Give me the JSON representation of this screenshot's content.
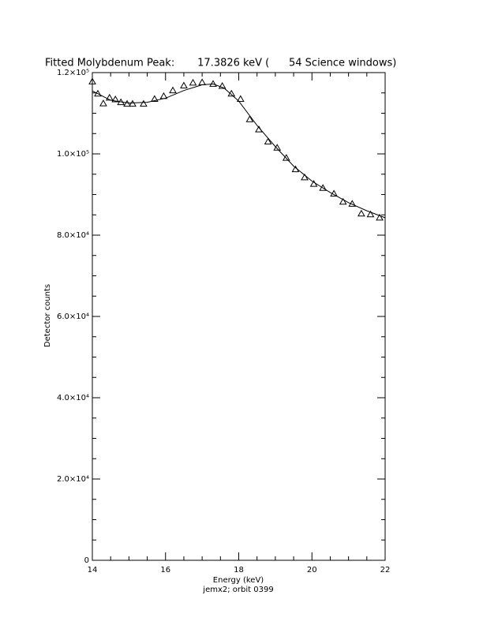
{
  "chart_data": {
    "type": "line",
    "title": "Fitted Molybdenum Peak:       17.3826 keV (      54 Science windows)",
    "xlabel": "Energy (keV)",
    "subtitle": "jemx2; orbit 0399",
    "ylabel": "Detector counts",
    "xlim": [
      14,
      22
    ],
    "ylim": [
      0,
      120000
    ],
    "xticks": [
      14,
      16,
      18,
      20,
      22
    ],
    "yticks": [
      0,
      {
        "value": 20000,
        "label": "2.0×10⁴"
      },
      {
        "value": 40000,
        "label": "4.0×10⁴"
      },
      {
        "value": 60000,
        "label": "6.0×10⁴"
      },
      {
        "value": 80000,
        "label": "8.0×10⁴"
      },
      {
        "value": 100000,
        "label": "1.0×10⁵"
      },
      {
        "value": 120000,
        "label": "1.2×10⁵"
      }
    ],
    "series": [
      {
        "color": "#000000",
        "marker": "triangle",
        "x": [
          14.0,
          14.15,
          14.3,
          14.47,
          14.63,
          14.78,
          14.95,
          15.1,
          15.4,
          15.7,
          15.95,
          16.2,
          16.5,
          16.75,
          17.0,
          17.3,
          17.55,
          17.8,
          18.05,
          18.3,
          18.55,
          18.8,
          19.05,
          19.3,
          19.55,
          19.8,
          20.05,
          20.3,
          20.6,
          20.85,
          21.1,
          21.35,
          21.6,
          21.85
        ],
        "values": [
          117800,
          114800,
          112400,
          113800,
          113400,
          112700,
          112300,
          112300,
          112300,
          113500,
          114200,
          115600,
          116800,
          117500,
          117600,
          117200,
          116700,
          114800,
          113500,
          108500,
          106000,
          103000,
          101500,
          99000,
          96200,
          94200,
          92600,
          91600,
          90200,
          88200,
          87700,
          85300,
          85100,
          84300
        ]
      },
      {
        "color": "#000000",
        "marker": "none",
        "x": [
          14.0,
          14.5,
          15.0,
          15.5,
          16.0,
          16.5,
          17.0,
          17.3,
          17.6,
          18.0,
          18.5,
          19.0,
          19.5,
          20.0,
          20.5,
          21.0,
          21.5,
          22.0
        ],
        "values": [
          115500,
          113200,
          112500,
          112700,
          113700,
          115600,
          117000,
          117200,
          116200,
          113000,
          107000,
          101800,
          97000,
          93300,
          90500,
          88000,
          86000,
          84300
        ]
      }
    ]
  }
}
